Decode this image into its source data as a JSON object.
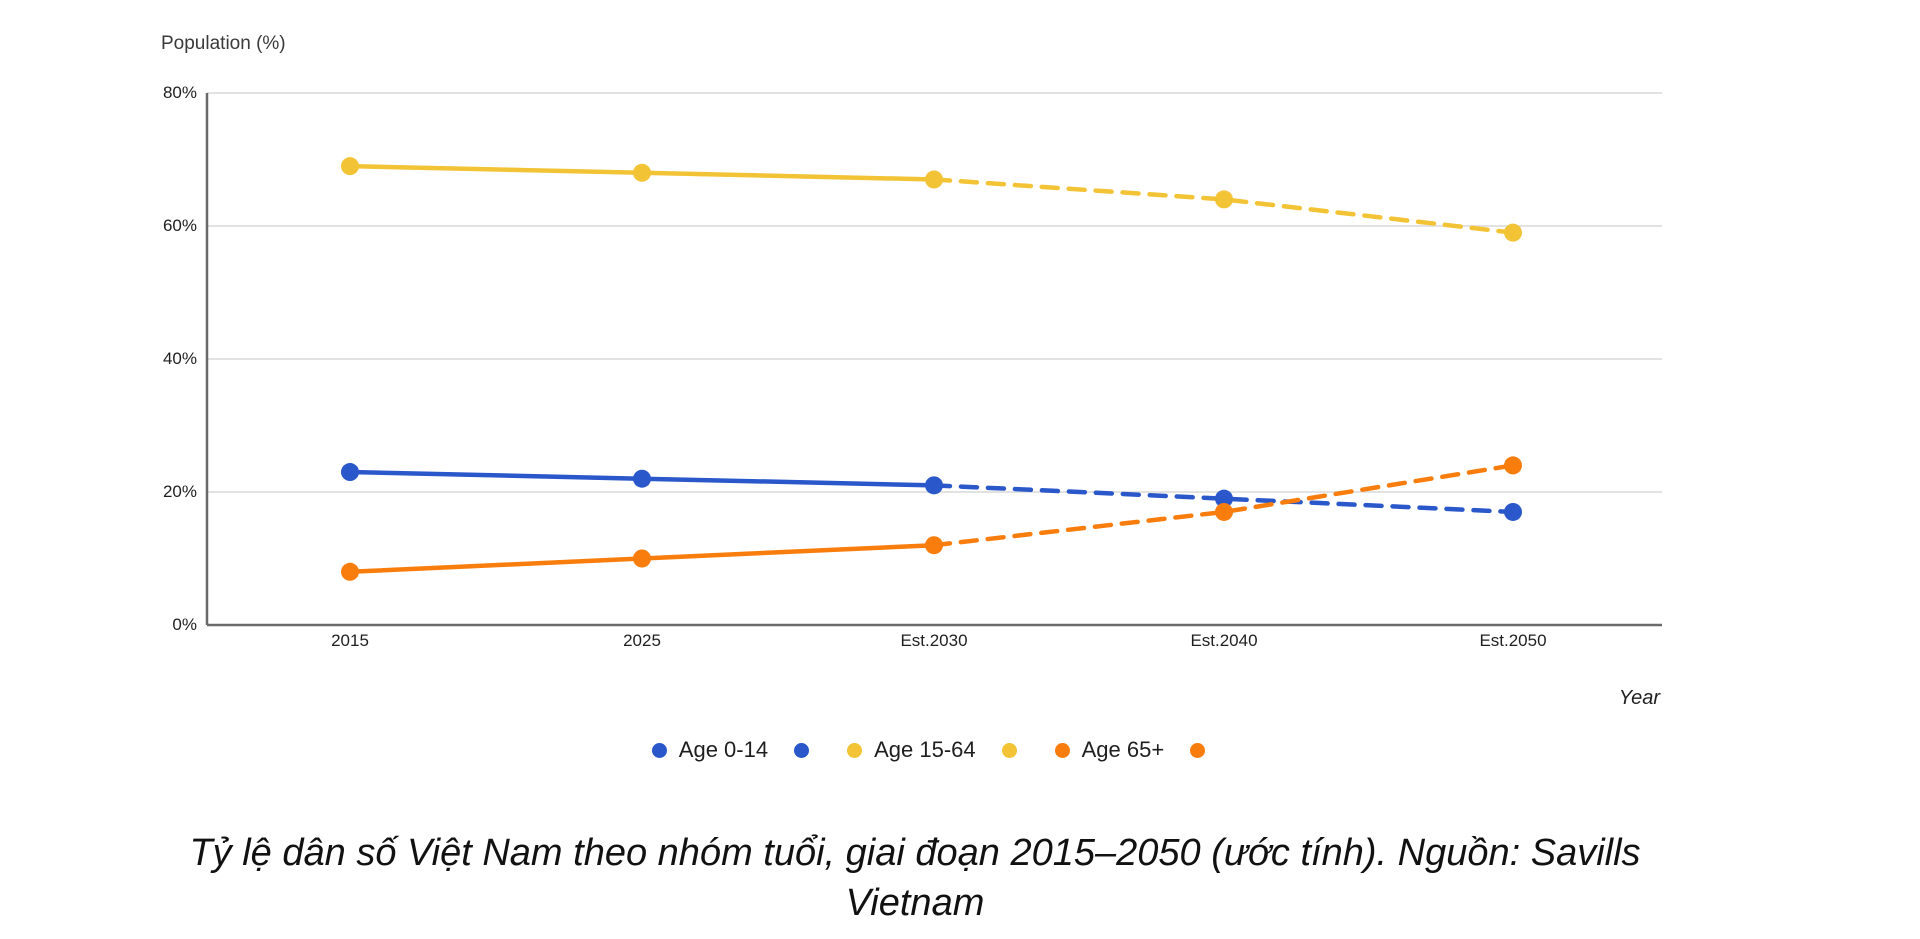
{
  "chart": {
    "y_axis_title": "Population (%)",
    "x_axis_title": "Year",
    "yticks": [
      "80%",
      "60%",
      "40%",
      "20%",
      "0%"
    ]
  },
  "chart_data": {
    "type": "line",
    "categories": [
      "2015",
      "2025",
      "Est.2030",
      "Est.2040",
      "Est.2050"
    ],
    "xlabel": "Year",
    "ylabel": "Population (%)",
    "ylim": [
      0,
      80
    ],
    "ytick_interval": 20,
    "grid": true,
    "legend_position": "bottom",
    "dashed_from_index": 2,
    "line_style_note": "solid lines through Est.2030, dashed for estimated years Est.2030 to Est.2050",
    "series": [
      {
        "name": "Age 0-14",
        "color": "#2A57C9",
        "values": [
          23,
          22,
          21,
          19,
          17
        ]
      },
      {
        "name": "Age 15-64",
        "color": "#F2C335",
        "values": [
          69,
          68,
          67,
          64,
          59
        ]
      },
      {
        "name": "Age 65+",
        "color": "#F87D0D",
        "values": [
          8,
          10,
          12,
          17,
          24
        ]
      }
    ],
    "colors": {
      "gridline": "#E2E2E2",
      "axis": "#6A6A6A"
    }
  },
  "legend": {
    "items": [
      {
        "label": "Age 0-14",
        "color": "#2A57C9"
      },
      {
        "label": "",
        "color": "#2A57C9"
      },
      {
        "label": "Age 15-64",
        "color": "#F2C335"
      },
      {
        "label": "",
        "color": "#F2C335"
      },
      {
        "label": "Age 65+",
        "color": "#F87D0D"
      },
      {
        "label": "",
        "color": "#F87D0D"
      }
    ]
  },
  "caption": {
    "lines": [
      "Tỷ lệ dân số Việt Nam theo nhóm tuổi, giai đoạn 2015–2050 (ước tính). Nguồn: Savills",
      "Vietnam"
    ],
    "text": "Tỷ lệ dân số Việt Nam theo nhóm tuổi, giai đoạn 2015–2050 (ước tính). Nguồn: Savills Vietnam"
  }
}
